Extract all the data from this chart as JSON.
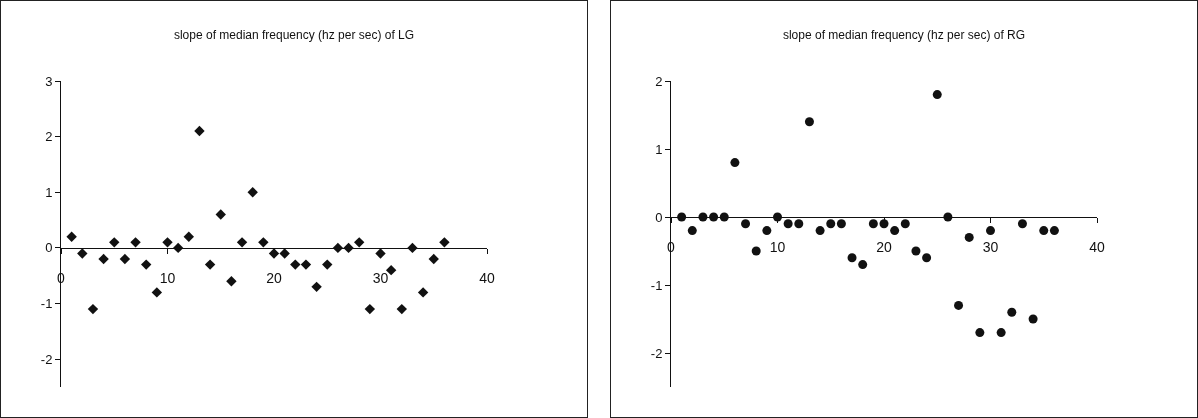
{
  "chart_data": [
    {
      "type": "scatter",
      "title": "slope of median frequency (hz per sec) of LG",
      "x": [
        1,
        2,
        3,
        4,
        5,
        6,
        7,
        8,
        9,
        10,
        11,
        12,
        13,
        14,
        15,
        16,
        17,
        18,
        19,
        20,
        21,
        22,
        23,
        24,
        25,
        26,
        27,
        28,
        29,
        30,
        31,
        32,
        33,
        34,
        35,
        36
      ],
      "series": [
        {
          "color": "#111111",
          "values": [
            0.2,
            -0.1,
            -1.1,
            -0.2,
            0.1,
            -0.2,
            0.1,
            -0.3,
            -0.8,
            0.1,
            0,
            0.2,
            2.1,
            -0.3,
            0.6,
            -0.6,
            0.1,
            1.0,
            0.1,
            -0.1,
            -0.1,
            -0.3,
            -0.3,
            -0.7,
            -0.3,
            0,
            0,
            0.1,
            -1.1,
            -0.1,
            -0.4,
            -1.1,
            0,
            -0.8,
            -0.2,
            0.1
          ]
        }
      ],
      "xlim": [
        0,
        40
      ],
      "xticks": [
        0,
        10,
        20,
        30,
        40
      ],
      "ylim": [
        -2.5,
        3
      ],
      "yticks": [
        -2,
        -1,
        0,
        1,
        2,
        3
      ],
      "marker": "diamond",
      "grid": false
    },
    {
      "type": "scatter",
      "title": "slope of median frequency (hz per sec) of RG",
      "x": [
        1,
        2,
        3,
        4,
        5,
        6,
        7,
        8,
        9,
        10,
        11,
        12,
        13,
        14,
        15,
        16,
        17,
        18,
        19,
        20,
        21,
        22,
        23,
        24,
        25,
        26,
        27,
        28,
        29,
        30,
        31,
        32,
        33,
        34,
        35,
        36
      ],
      "series": [
        {
          "color": "#111111",
          "values": [
            0,
            -0.2,
            0,
            0,
            0,
            0.8,
            -0.1,
            -0.5,
            -0.2,
            0,
            -0.1,
            -0.1,
            1.4,
            -0.2,
            -0.1,
            -0.1,
            -0.6,
            -0.7,
            -0.1,
            -0.1,
            -0.2,
            -0.1,
            -0.5,
            -0.6,
            1.8,
            0,
            -1.3,
            -0.3,
            -1.7,
            -0.2,
            -1.7,
            -1.4,
            -0.1,
            -1.5,
            -0.2,
            -0.2
          ]
        }
      ],
      "xlim": [
        0,
        40
      ],
      "xticks": [
        0,
        10,
        20,
        30,
        40
      ],
      "ylim": [
        -2.5,
        2
      ],
      "yticks": [
        -2,
        -1,
        0,
        1,
        2
      ],
      "marker": "circle",
      "grid": false
    }
  ]
}
